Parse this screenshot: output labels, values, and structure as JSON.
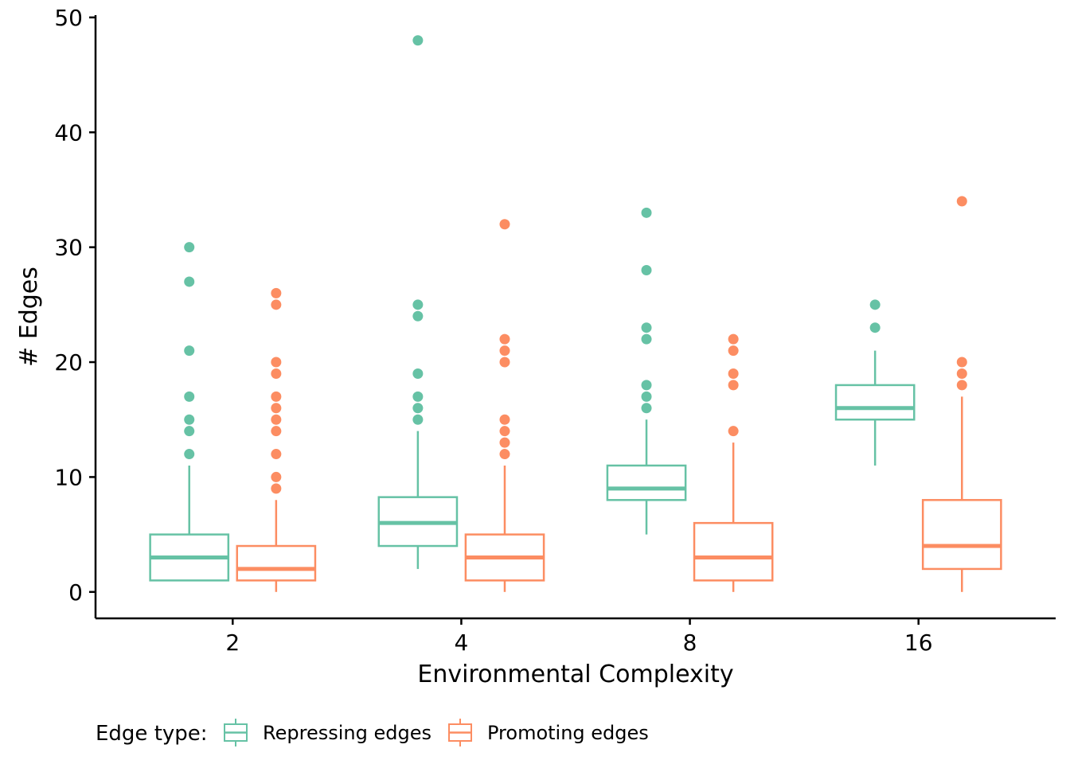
{
  "chart_data": {
    "type": "boxplot",
    "xlabel": "Environmental Complexity",
    "ylabel": "# Edges",
    "ylim": [
      -2.3,
      50.2
    ],
    "yticks": [
      0,
      10,
      20,
      30,
      40,
      50
    ],
    "categories": [
      "2",
      "4",
      "8",
      "16"
    ],
    "legend": {
      "title": "Edge type:",
      "placement": "bottom-left"
    },
    "series": [
      {
        "name": "Repressing edges",
        "color": "#66c2a5",
        "boxes": [
          {
            "category": "2",
            "whisker_low": 1,
            "q1": 1,
            "median": 3,
            "q3": 5,
            "whisker_high": 11,
            "outliers": [
              12,
              14,
              15,
              17,
              21,
              27,
              30
            ]
          },
          {
            "category": "4",
            "whisker_low": 2,
            "q1": 4,
            "median": 6,
            "q3": 8.25,
            "whisker_high": 14,
            "outliers": [
              15,
              16,
              17,
              19,
              24,
              25,
              48
            ]
          },
          {
            "category": "8",
            "whisker_low": 5,
            "q1": 8,
            "median": 9,
            "q3": 11,
            "whisker_high": 15,
            "outliers": [
              16,
              17,
              18,
              22,
              23,
              28,
              33
            ]
          },
          {
            "category": "16",
            "whisker_low": 11,
            "q1": 15,
            "median": 16,
            "q3": 18,
            "whisker_high": 21,
            "outliers": [
              23,
              25
            ]
          }
        ]
      },
      {
        "name": "Promoting edges",
        "color": "#fc8d62",
        "boxes": [
          {
            "category": "2",
            "whisker_low": 0,
            "q1": 1,
            "median": 2,
            "q3": 4,
            "whisker_high": 8,
            "outliers": [
              9,
              10,
              12,
              14,
              15,
              16,
              17,
              19,
              20,
              25,
              26
            ]
          },
          {
            "category": "4",
            "whisker_low": 0,
            "q1": 1,
            "median": 3,
            "q3": 5,
            "whisker_high": 11,
            "outliers": [
              12,
              13,
              14,
              15,
              20,
              21,
              22,
              32
            ]
          },
          {
            "category": "8",
            "whisker_low": 0,
            "q1": 1,
            "median": 3,
            "q3": 6,
            "whisker_high": 13,
            "outliers": [
              14,
              18,
              19,
              21,
              22
            ]
          },
          {
            "category": "16",
            "whisker_low": 0,
            "q1": 2,
            "median": 4,
            "q3": 8,
            "whisker_high": 17,
            "outliers": [
              18,
              19,
              20,
              34
            ]
          }
        ]
      }
    ]
  }
}
